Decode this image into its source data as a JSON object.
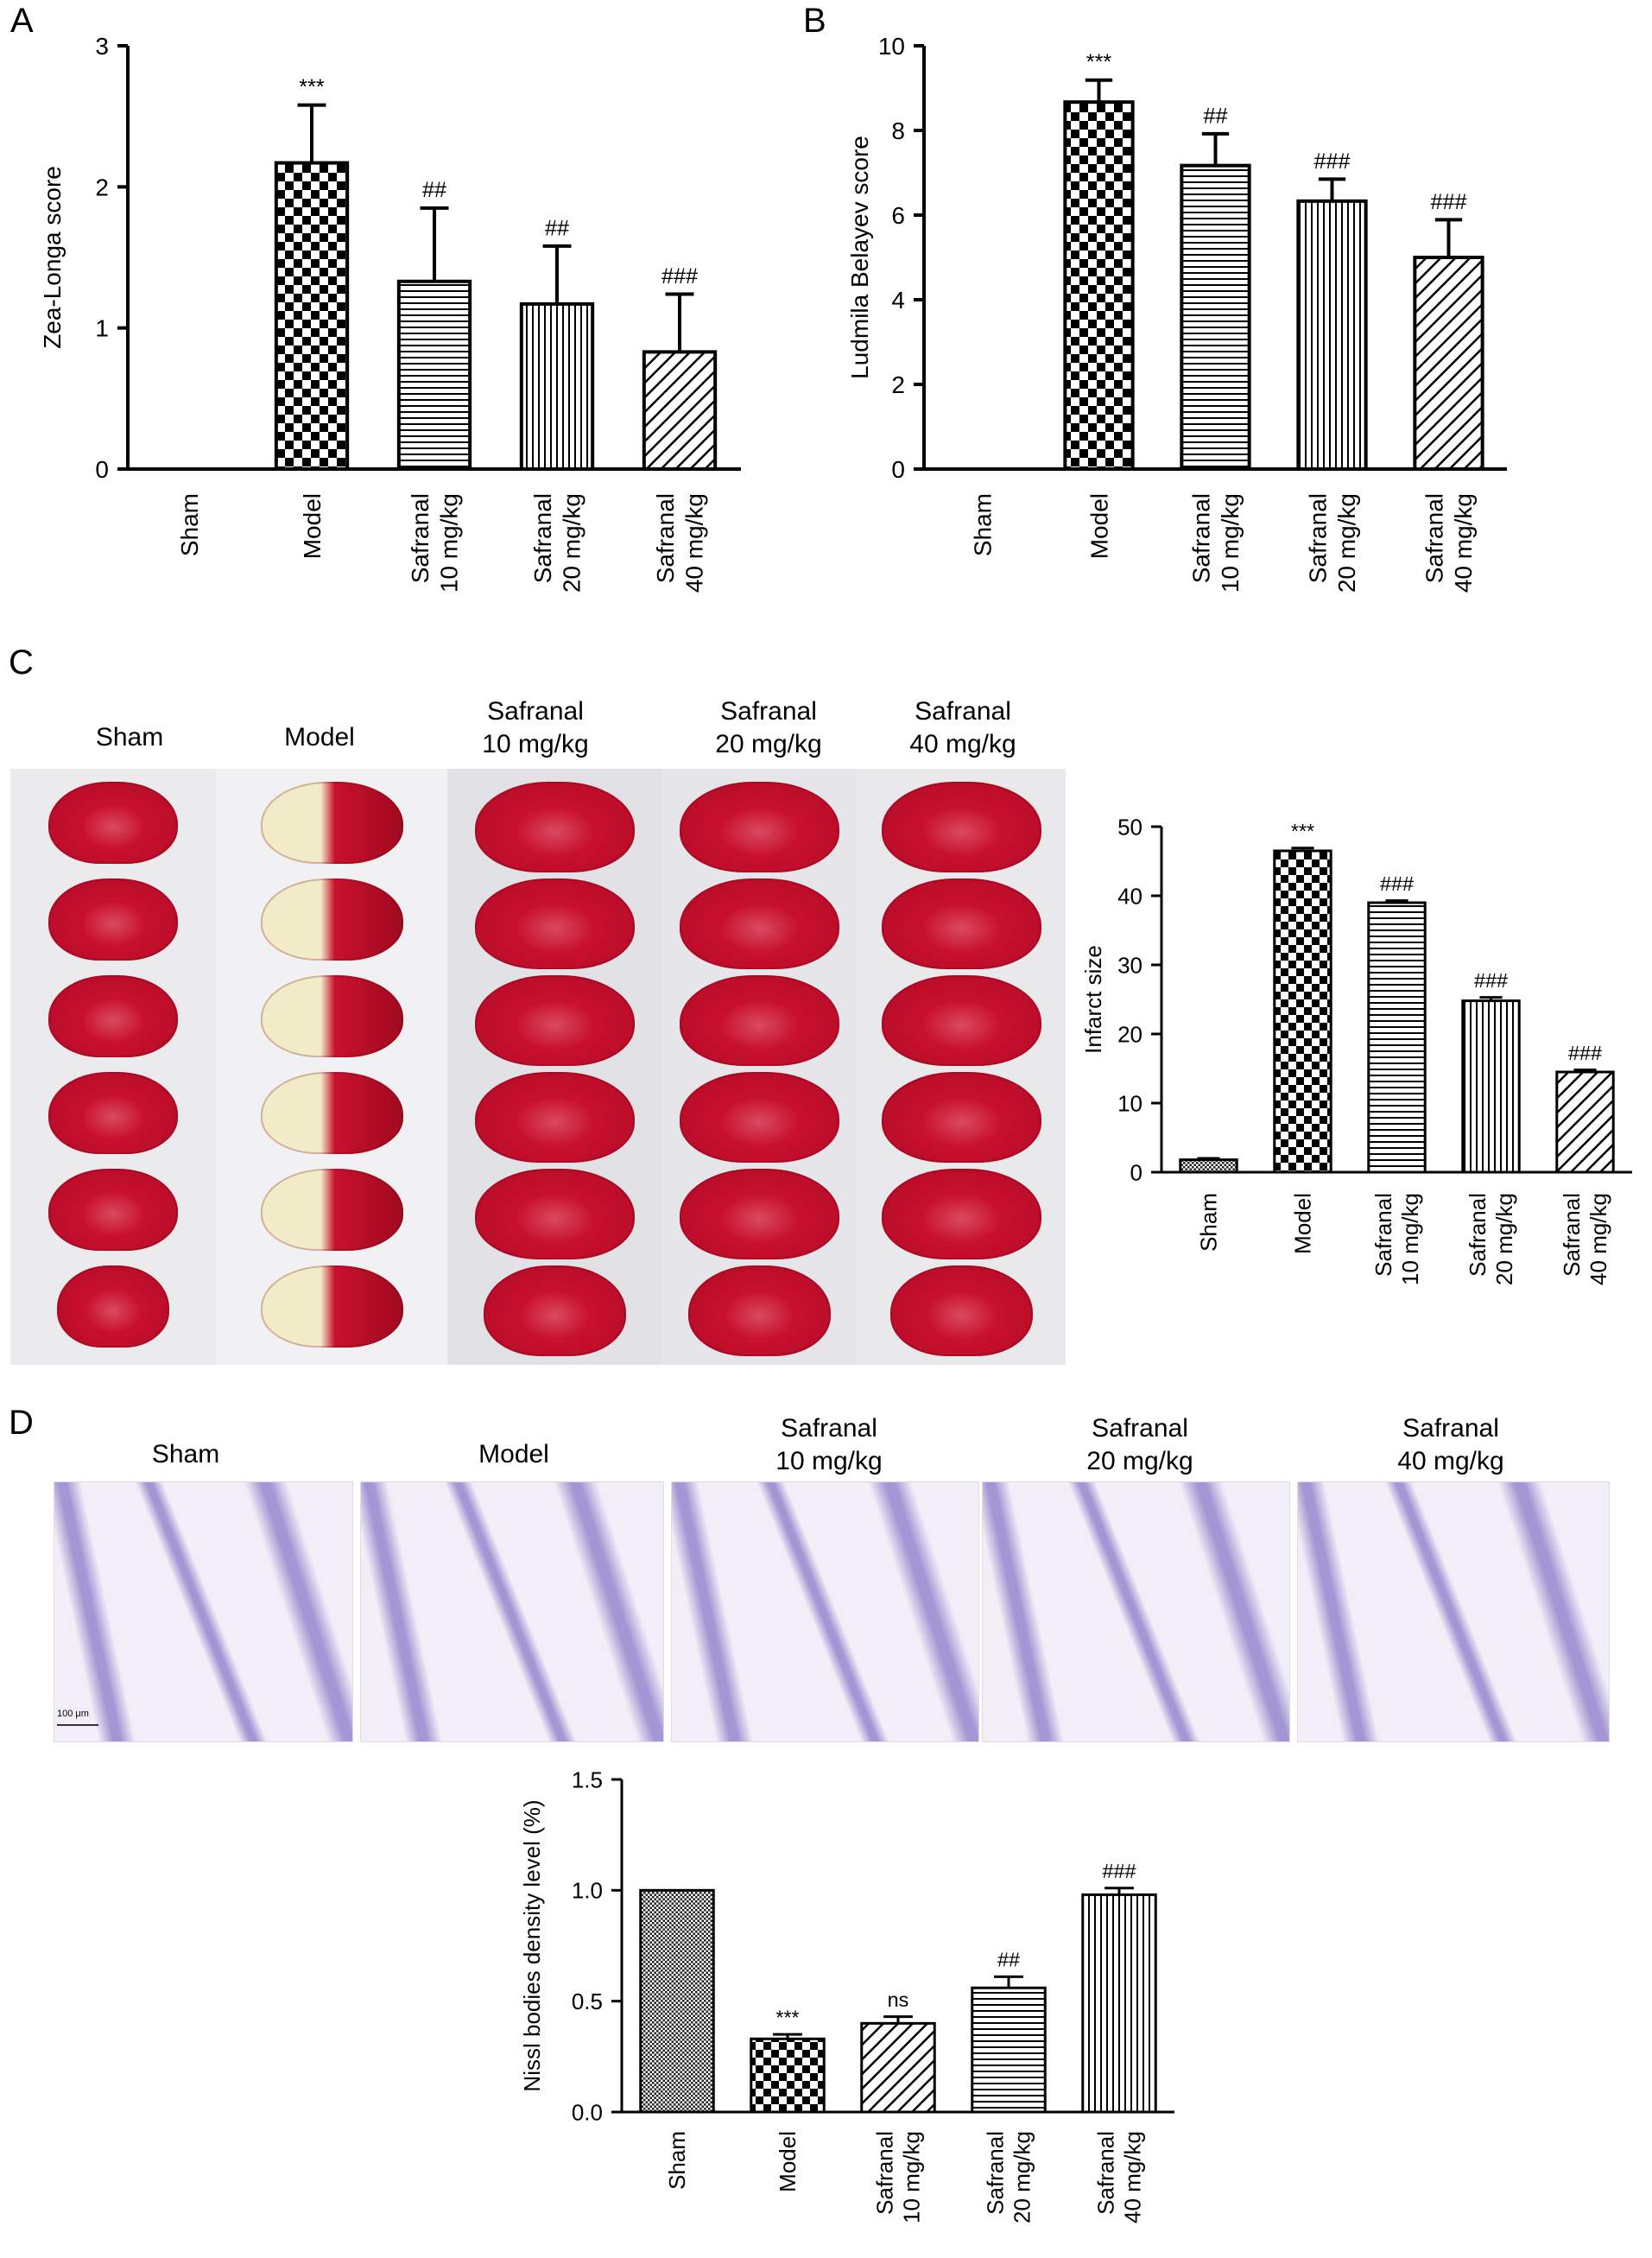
{
  "panels": {
    "a": "A",
    "b": "B",
    "c": "C",
    "d": "D"
  },
  "colors": {
    "tissue_red": "#c8102e",
    "infarct_white": "#f2ebc8",
    "nissl_violet": "#8a78c8",
    "photo_bg": "#e8e8ec",
    "nissl_bg": "#f1eef7"
  },
  "photo_labels": {
    "c": [
      {
        "line1": "Sham",
        "line2": ""
      },
      {
        "line1": "Model",
        "line2": ""
      },
      {
        "line1": "Safranal",
        "line2": "10 mg/kg"
      },
      {
        "line1": "Safranal",
        "line2": "20 mg/kg"
      },
      {
        "line1": "Safranal",
        "line2": "40 mg/kg"
      }
    ],
    "d": [
      {
        "line1": "Sham",
        "line2": ""
      },
      {
        "line1": "Model",
        "line2": ""
      },
      {
        "line1": "Safranal",
        "line2": "10 mg/kg"
      },
      {
        "line1": "Safranal",
        "line2": "20 mg/kg"
      },
      {
        "line1": "Safranal",
        "line2": "40 mg/kg"
      }
    ]
  },
  "scale_bar": "100 μm",
  "chart_data": [
    {
      "id": "A",
      "type": "bar",
      "ylabel": "Zea-Longa score",
      "ylim": [
        0,
        3
      ],
      "yticks": [
        "0",
        "1",
        "2",
        "3"
      ],
      "categories": [
        {
          "line1": "Sham",
          "line2": ""
        },
        {
          "line1": "Model",
          "line2": ""
        },
        {
          "line1": "Safranal",
          "line2": "10 mg/kg"
        },
        {
          "line1": "Safranal",
          "line2": "20 mg/kg"
        },
        {
          "line1": "Safranal",
          "line2": "40 mg/kg"
        }
      ],
      "values": [
        0,
        2.17,
        1.33,
        1.17,
        0.83
      ],
      "errors": [
        0,
        0.41,
        0.52,
        0.41,
        0.41
      ],
      "annotations": [
        "",
        "***",
        "##",
        "##",
        "###"
      ],
      "patterns": [
        "none",
        "check",
        "hlines",
        "vlines",
        "diag"
      ]
    },
    {
      "id": "B",
      "type": "bar",
      "ylabel": "Ludmila Belayev score",
      "ylim": [
        0,
        10
      ],
      "yticks": [
        "0",
        "2",
        "4",
        "6",
        "8",
        "10"
      ],
      "categories": [
        {
          "line1": "Sham",
          "line2": ""
        },
        {
          "line1": "Model",
          "line2": ""
        },
        {
          "line1": "Safranal",
          "line2": "10 mg/kg"
        },
        {
          "line1": "Safranal",
          "line2": "20 mg/kg"
        },
        {
          "line1": "Safranal",
          "line2": "40 mg/kg"
        }
      ],
      "values": [
        0,
        8.67,
        7.17,
        6.33,
        5.0
      ],
      "errors": [
        0,
        0.52,
        0.75,
        0.52,
        0.89
      ],
      "annotations": [
        "",
        "***",
        "##",
        "###",
        "###"
      ],
      "patterns": [
        "none",
        "check",
        "hlines",
        "vlines",
        "diag"
      ]
    },
    {
      "id": "C",
      "type": "bar",
      "ylabel": "Infarct size",
      "ylim": [
        0,
        50
      ],
      "yticks": [
        "0",
        "10",
        "20",
        "30",
        "40",
        "50"
      ],
      "categories": [
        {
          "line1": "Sham",
          "line2": ""
        },
        {
          "line1": "Model",
          "line2": ""
        },
        {
          "line1": "Safranal",
          "line2": "10 mg/kg"
        },
        {
          "line1": "Safranal",
          "line2": "20 mg/kg"
        },
        {
          "line1": "Safranal",
          "line2": "40 mg/kg"
        }
      ],
      "values": [
        1.8,
        46.5,
        39.0,
        24.8,
        14.5
      ],
      "errors": [
        0.2,
        0.4,
        0.3,
        0.5,
        0.3
      ],
      "annotations": [
        "",
        "***",
        "###",
        "###",
        "###"
      ],
      "patterns": [
        "dense",
        "check",
        "hlines",
        "vlines",
        "diag"
      ]
    },
    {
      "id": "D",
      "type": "bar",
      "ylabel": "Nissl bodies density level (%)",
      "ylim": [
        0,
        1.5
      ],
      "yticks": [
        "0.0",
        "0.5",
        "1.0",
        "1.5"
      ],
      "categories": [
        {
          "line1": "Sham",
          "line2": ""
        },
        {
          "line1": "Model",
          "line2": ""
        },
        {
          "line1": "Safranal",
          "line2": "10 mg/kg"
        },
        {
          "line1": "Safranal",
          "line2": "20 mg/kg"
        },
        {
          "line1": "Safranal",
          "line2": "40 mg/kg"
        }
      ],
      "values": [
        1.0,
        0.33,
        0.4,
        0.56,
        0.98
      ],
      "errors": [
        0,
        0.02,
        0.03,
        0.05,
        0.03
      ],
      "annotations": [
        "",
        "***",
        "ns",
        "##",
        "###"
      ],
      "patterns": [
        "dense",
        "check",
        "diag",
        "hlines",
        "vlines"
      ]
    }
  ]
}
